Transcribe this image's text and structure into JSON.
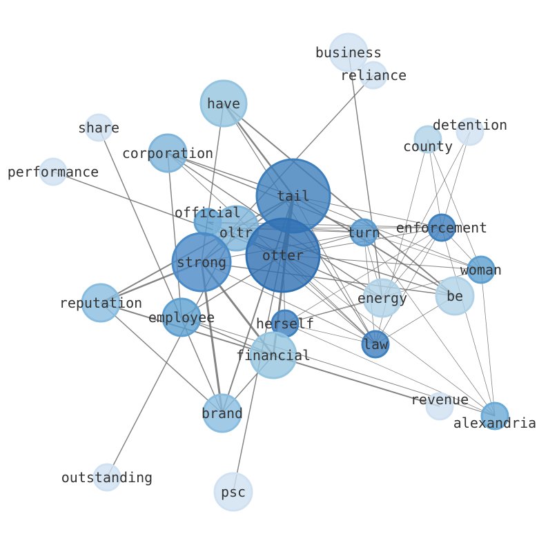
{
  "nodes": [
    {
      "id": "business",
      "color": "#d0e1f2"
    },
    {
      "id": "reliance",
      "color": "#d0e1f2"
    },
    {
      "id": "have",
      "color": "#94c4df"
    },
    {
      "id": "share",
      "color": "#d0e1f2"
    },
    {
      "id": "corporation",
      "color": "#7fb5da"
    },
    {
      "id": "detention",
      "color": "#d0e1f2"
    },
    {
      "id": "county",
      "color": "#b0d2e7"
    },
    {
      "id": "performance",
      "color": "#d0e1f2"
    },
    {
      "id": "tail",
      "color": "#3d7ebc"
    },
    {
      "id": "official",
      "color": "#5c9fd0"
    },
    {
      "id": "oltr",
      "color": "#7fb5da"
    },
    {
      "id": "turn",
      "color": "#5a9bd0"
    },
    {
      "id": "enforcement",
      "color": "#3f80bf"
    },
    {
      "id": "strong",
      "color": "#4a8ac6"
    },
    {
      "id": "otter",
      "color": "#2f70b3"
    },
    {
      "id": "woman",
      "color": "#5c9fd0"
    },
    {
      "id": "energy",
      "color": "#b0d2e7"
    },
    {
      "id": "be",
      "color": "#b0d2e7"
    },
    {
      "id": "reputation",
      "color": "#88bde0"
    },
    {
      "id": "employee",
      "color": "#5c9fd0"
    },
    {
      "id": "herself",
      "color": "#3f80bf"
    },
    {
      "id": "law",
      "color": "#3f80bf"
    },
    {
      "id": "financial",
      "color": "#94c4df"
    },
    {
      "id": "revenue",
      "color": "#d0e1f2"
    },
    {
      "id": "alexandria",
      "color": "#6aaad6"
    },
    {
      "id": "brand",
      "color": "#88bde0"
    },
    {
      "id": "outstanding",
      "color": "#d0e1f2"
    },
    {
      "id": "psc",
      "color": "#d0e1f2"
    }
  ],
  "edges": [
    [
      "business",
      "energy",
      1.5
    ],
    [
      "reliance",
      "strong",
      1.5
    ],
    [
      "have",
      "tail",
      2.5
    ],
    [
      "have",
      "be",
      2
    ],
    [
      "have",
      "law",
      1.2
    ],
    [
      "have",
      "strong",
      1.5
    ],
    [
      "share",
      "brand",
      1.5
    ],
    [
      "corporation",
      "tail",
      1.5
    ],
    [
      "corporation",
      "turn",
      1.5
    ],
    [
      "corporation",
      "energy",
      1.5
    ],
    [
      "corporation",
      "employee",
      1.5
    ],
    [
      "corporation",
      "law",
      1
    ],
    [
      "performance",
      "otter",
      1.5
    ],
    [
      "detention",
      "enforcement",
      0.8
    ],
    [
      "county",
      "enforcement",
      0.8
    ],
    [
      "county",
      "law",
      0.8
    ],
    [
      "county",
      "woman",
      0.8
    ],
    [
      "detention",
      "energy",
      0.8
    ],
    [
      "tail",
      "otter",
      5
    ],
    [
      "tail",
      "financial",
      3
    ],
    [
      "tail",
      "brand",
      2
    ],
    [
      "tail",
      "enforcement",
      1
    ],
    [
      "tail",
      "woman",
      1
    ],
    [
      "tail",
      "be",
      2
    ],
    [
      "tail",
      "law",
      1
    ],
    [
      "tail",
      "strong",
      2
    ],
    [
      "tail",
      "reputation",
      2
    ],
    [
      "tail",
      "psc",
      1.5
    ],
    [
      "oltr",
      "enforcement",
      1
    ],
    [
      "oltr",
      "turn",
      1
    ],
    [
      "oltr",
      "law",
      1
    ],
    [
      "oltr",
      "be",
      1.5
    ],
    [
      "oltr",
      "outstanding",
      1.5
    ],
    [
      "official",
      "turn",
      1
    ],
    [
      "official",
      "enforcement",
      1
    ],
    [
      "official",
      "energy",
      1.5
    ],
    [
      "strong",
      "financial",
      3
    ],
    [
      "strong",
      "brand",
      3
    ],
    [
      "strong",
      "reputation",
      2.5
    ],
    [
      "strong",
      "turn",
      1
    ],
    [
      "strong",
      "be",
      1.5
    ],
    [
      "strong",
      "law",
      1
    ],
    [
      "otter",
      "turn",
      1
    ],
    [
      "otter",
      "enforcement",
      1
    ],
    [
      "otter",
      "woman",
      1
    ],
    [
      "otter",
      "herself",
      1
    ],
    [
      "otter",
      "employee",
      1.5
    ],
    [
      "otter",
      "law",
      1
    ],
    [
      "otter",
      "alexandria",
      0.8
    ],
    [
      "turn",
      "law",
      0.8
    ],
    [
      "turn",
      "energy",
      0.8
    ],
    [
      "turn",
      "woman",
      0.8
    ],
    [
      "turn",
      "alexandria",
      0.8
    ],
    [
      "enforcement",
      "law",
      0.8
    ],
    [
      "enforcement",
      "energy",
      0.8
    ],
    [
      "enforcement",
      "woman",
      0.8
    ],
    [
      "enforcement",
      "herself",
      0.8
    ],
    [
      "enforcement",
      "alexandria",
      0.8
    ],
    [
      "woman",
      "alexandria",
      0.8
    ],
    [
      "woman",
      "herself",
      0.8
    ],
    [
      "be",
      "law",
      0.8
    ],
    [
      "herself",
      "law",
      0.8
    ],
    [
      "herself",
      "alexandria",
      0.8
    ],
    [
      "herself",
      "energy",
      0.8
    ],
    [
      "reputation",
      "brand",
      1.5
    ],
    [
      "reputation",
      "revenue",
      2
    ],
    [
      "employee",
      "alexandria",
      1
    ],
    [
      "financial",
      "brand",
      1.5
    ],
    [
      "financial",
      "employee",
      1.5
    ]
  ]
}
